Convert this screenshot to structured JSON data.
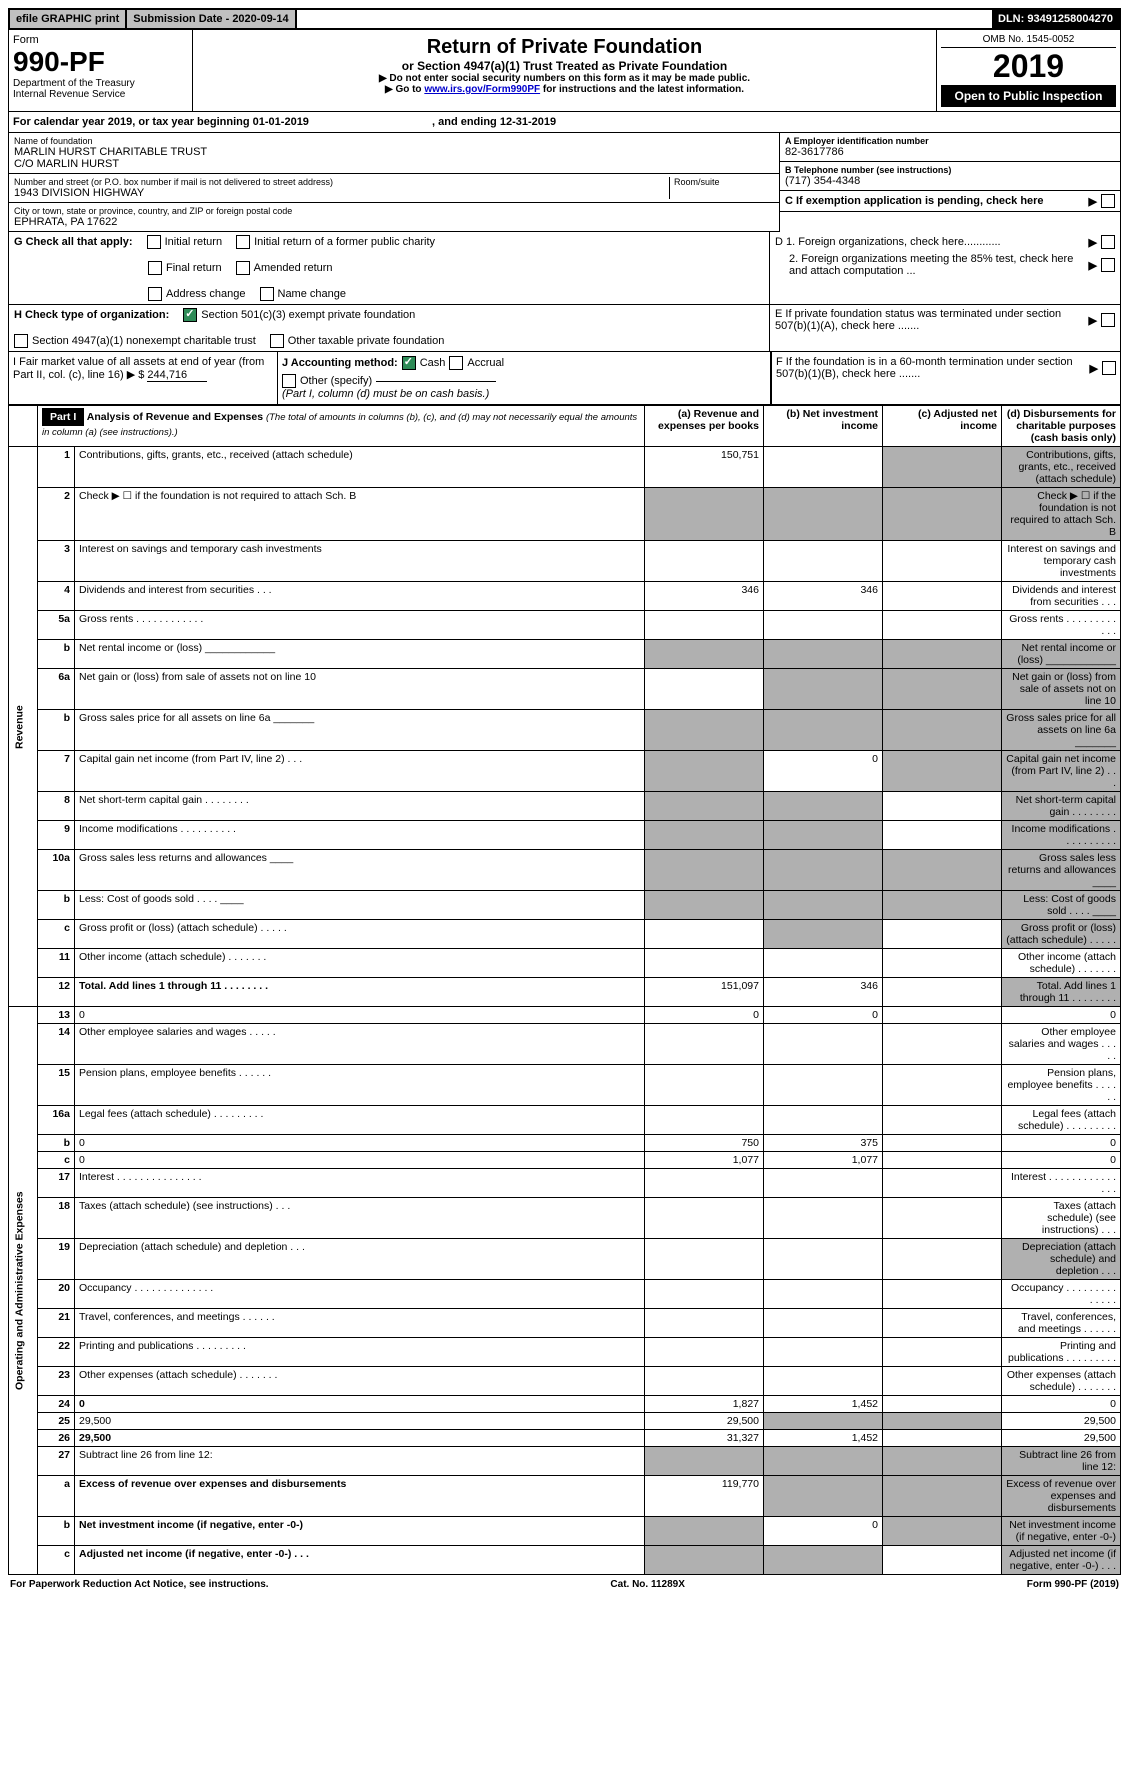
{
  "top": {
    "efile": "efile GRAPHIC print",
    "submission": "Submission Date - 2020-09-14",
    "dln": "DLN: 93491258004270"
  },
  "header": {
    "form_word": "Form",
    "form_num": "990-PF",
    "dept": "Department of the Treasury",
    "irs": "Internal Revenue Service",
    "title": "Return of Private Foundation",
    "subtitle": "or Section 4947(a)(1) Trust Treated as Private Foundation",
    "instr1": "▶ Do not enter social security numbers on this form as it may be made public.",
    "instr2_pre": "▶ Go to ",
    "instr2_link": "www.irs.gov/Form990PF",
    "instr2_post": " for instructions and the latest information.",
    "omb": "OMB No. 1545-0052",
    "year": "2019",
    "open": "Open to Public Inspection"
  },
  "calyear": {
    "text_pre": "For calendar year 2019, or tax year beginning ",
    "begin": "01-01-2019",
    "mid": " , and ending ",
    "end": "12-31-2019"
  },
  "id": {
    "name_lbl": "Name of foundation",
    "name1": "MARLIN HURST CHARITABLE TRUST",
    "name2": "C/O MARLIN HURST",
    "addr_lbl": "Number and street (or P.O. box number if mail is not delivered to street address)",
    "room_lbl": "Room/suite",
    "addr": "1943 DIVISION HIGHWAY",
    "city_lbl": "City or town, state or province, country, and ZIP or foreign postal code",
    "city": "EPHRATA, PA  17622",
    "a_lbl": "A Employer identification number",
    "ein": "82-3617786",
    "b_lbl": "B Telephone number (see instructions)",
    "phone": "(717) 354-4348",
    "c_lbl": "C If exemption application is pending, check here",
    "d1": "D 1. Foreign organizations, check here............",
    "d2": "2. Foreign organizations meeting the 85% test, check here and attach computation ...",
    "e": "E  If private foundation status was terminated under section 507(b)(1)(A), check here .......",
    "f": "F  If the foundation is in a 60-month termination under section 507(b)(1)(B), check here .......",
    "g_lbl": "G Check all that apply:",
    "g_opts": [
      "Initial return",
      "Initial return of a former public charity",
      "Final return",
      "Amended return",
      "Address change",
      "Name change"
    ],
    "h_lbl": "H Check type of organization:",
    "h_opts": [
      "Section 501(c)(3) exempt private foundation",
      "Section 4947(a)(1) nonexempt charitable trust",
      "Other taxable private foundation"
    ],
    "i_lbl": "I Fair market value of all assets at end of year (from Part II, col. (c), line 16) ▶ $",
    "i_val": "244,716",
    "j_lbl": "J Accounting method:",
    "j_cash": "Cash",
    "j_acc": "Accrual",
    "j_other": "Other (specify)",
    "j_note": "(Part I, column (d) must be on cash basis.)"
  },
  "part1": {
    "label": "Part I",
    "title": "Analysis of Revenue and Expenses",
    "title_note": "(The total of amounts in columns (b), (c), and (d) may not necessarily equal the amounts in column (a) (see instructions).)",
    "cols": {
      "a": "(a)  Revenue and expenses per books",
      "b": "(b)  Net investment income",
      "c": "(c)  Adjusted net income",
      "d": "(d)  Disbursements for charitable purposes (cash basis only)"
    },
    "side_rev": "Revenue",
    "side_exp": "Operating and Administrative Expenses",
    "rows": [
      {
        "n": "1",
        "d": "Contributions, gifts, grants, etc., received (attach schedule)",
        "a": "150,751",
        "shade_b": false,
        "shade_c": true,
        "shade_d": true
      },
      {
        "n": "2",
        "d": "Check ▶ ☐ if the foundation is not required to attach Sch. B",
        "shade_a": true,
        "shade_b": true,
        "shade_c": true,
        "shade_d": true
      },
      {
        "n": "3",
        "d": "Interest on savings and temporary cash investments"
      },
      {
        "n": "4",
        "d": "Dividends and interest from securities  .  .  .",
        "a": "346",
        "b": "346"
      },
      {
        "n": "5a",
        "d": "Gross rents  .  .  .  .  .  .  .  .  .  .  .  ."
      },
      {
        "n": "b",
        "d": "Net rental income or (loss)  ____________",
        "shade_a": true,
        "shade_b": true,
        "shade_c": true,
        "shade_d": true
      },
      {
        "n": "6a",
        "d": "Net gain or (loss) from sale of assets not on line 10",
        "shade_b": true,
        "shade_c": true,
        "shade_d": true
      },
      {
        "n": "b",
        "d": "Gross sales price for all assets on line 6a  _______",
        "shade_a": true,
        "shade_b": true,
        "shade_c": true,
        "shade_d": true
      },
      {
        "n": "7",
        "d": "Capital gain net income (from Part IV, line 2)  .  .  .",
        "shade_a": true,
        "b": "0",
        "shade_c": true,
        "shade_d": true
      },
      {
        "n": "8",
        "d": "Net short-term capital gain  .  .  .  .  .  .  .  .",
        "shade_a": true,
        "shade_b": true,
        "shade_d": true
      },
      {
        "n": "9",
        "d": "Income modifications  .  .  .  .  .  .  .  .  .  .",
        "shade_a": true,
        "shade_b": true,
        "shade_d": true
      },
      {
        "n": "10a",
        "d": "Gross sales less returns and allowances  ____",
        "shade_a": true,
        "shade_b": true,
        "shade_c": true,
        "shade_d": true
      },
      {
        "n": "b",
        "d": "Less: Cost of goods sold  .  .  .  .  ____",
        "shade_a": true,
        "shade_b": true,
        "shade_c": true,
        "shade_d": true
      },
      {
        "n": "c",
        "d": "Gross profit or (loss) (attach schedule)  .  .  .  .  .",
        "shade_b": true,
        "shade_d": true
      },
      {
        "n": "11",
        "d": "Other income (attach schedule)  .  .  .  .  .  .  ."
      },
      {
        "n": "12",
        "d": "Total. Add lines 1 through 11  .  .  .  .  .  .  .  .",
        "bold": true,
        "a": "151,097",
        "b": "346",
        "shade_d": true
      },
      {
        "n": "13",
        "d": "0",
        "a": "0",
        "b": "0"
      },
      {
        "n": "14",
        "d": "Other employee salaries and wages  .  .  .  .  ."
      },
      {
        "n": "15",
        "d": "Pension plans, employee benefits  .  .  .  .  .  ."
      },
      {
        "n": "16a",
        "d": "Legal fees (attach schedule)  .  .  .  .  .  .  .  .  ."
      },
      {
        "n": "b",
        "d": "0",
        "a": "750",
        "b": "375"
      },
      {
        "n": "c",
        "d": "0",
        "a": "1,077",
        "b": "1,077"
      },
      {
        "n": "17",
        "d": "Interest  .  .  .  .  .  .  .  .  .  .  .  .  .  .  ."
      },
      {
        "n": "18",
        "d": "Taxes (attach schedule) (see instructions)  .  .  ."
      },
      {
        "n": "19",
        "d": "Depreciation (attach schedule) and depletion  .  .  .",
        "shade_d": true
      },
      {
        "n": "20",
        "d": "Occupancy  .  .  .  .  .  .  .  .  .  .  .  .  .  ."
      },
      {
        "n": "21",
        "d": "Travel, conferences, and meetings  .  .  .  .  .  ."
      },
      {
        "n": "22",
        "d": "Printing and publications  .  .  .  .  .  .  .  .  ."
      },
      {
        "n": "23",
        "d": "Other expenses (attach schedule)  .  .  .  .  .  .  ."
      },
      {
        "n": "24",
        "d": "0",
        "bold": true,
        "a": "1,827",
        "b": "1,452"
      },
      {
        "n": "25",
        "d": "29,500",
        "a": "29,500",
        "shade_b": true,
        "shade_c": true
      },
      {
        "n": "26",
        "d": "29,500",
        "bold": true,
        "a": "31,327",
        "b": "1,452"
      },
      {
        "n": "27",
        "d": "Subtract line 26 from line 12:",
        "shade_a": true,
        "shade_b": true,
        "shade_c": true,
        "shade_d": true
      },
      {
        "n": "a",
        "d": "Excess of revenue over expenses and disbursements",
        "bold": true,
        "a": "119,770",
        "shade_b": true,
        "shade_c": true,
        "shade_d": true
      },
      {
        "n": "b",
        "d": "Net investment income (if negative, enter -0-)",
        "bold": true,
        "shade_a": true,
        "b": "0",
        "shade_c": true,
        "shade_d": true
      },
      {
        "n": "c",
        "d": "Adjusted net income (if negative, enter -0-)  .  .  .",
        "bold": true,
        "shade_a": true,
        "shade_b": true,
        "shade_d": true
      }
    ]
  },
  "footer": {
    "left": "For Paperwork Reduction Act Notice, see instructions.",
    "mid": "Cat. No. 11289X",
    "right": "Form 990-PF (2019)"
  }
}
